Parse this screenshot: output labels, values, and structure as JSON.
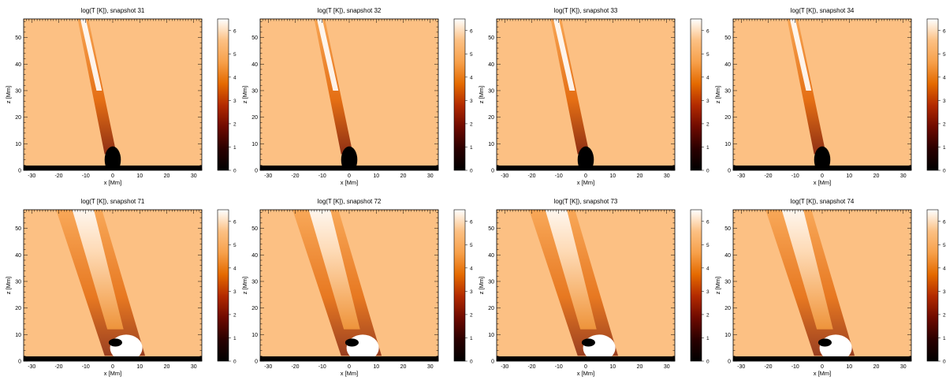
{
  "figure": {
    "colors": {
      "background": "#fcc083",
      "colormap": [
        "#000000",
        "#2a0000",
        "#6e0a00",
        "#b22a00",
        "#e46a00",
        "#f7a04a",
        "#fcc083",
        "#ffffff"
      ],
      "cool_base": "#000000",
      "hot_feature": "#ffffff"
    }
  },
  "chart_data": [
    {
      "type": "heatmap",
      "title": "log(T [K]), snapshot 31",
      "xlabel": "x [Mm]",
      "ylabel": "z [Mm]",
      "xlim": [
        -33,
        33
      ],
      "ylim": [
        0,
        57
      ],
      "x_ticks": [
        -30,
        -20,
        -10,
        0,
        10,
        20,
        30
      ],
      "y_ticks": [
        0,
        10,
        20,
        30,
        40,
        50
      ],
      "colorbar": {
        "range": [
          0,
          6.5
        ],
        "ticks": [
          0,
          1,
          2,
          3,
          4,
          5,
          6
        ]
      }
    },
    {
      "type": "heatmap",
      "title": "log(T [K]), snapshot 32",
      "xlabel": "x [Mm]",
      "ylabel": "z [Mm]",
      "xlim": [
        -33,
        33
      ],
      "ylim": [
        0,
        57
      ],
      "x_ticks": [
        -30,
        -20,
        -10,
        0,
        10,
        20,
        30
      ],
      "y_ticks": [
        0,
        10,
        20,
        30,
        40,
        50
      ],
      "colorbar": {
        "range": [
          0,
          6.5
        ],
        "ticks": [
          0,
          1,
          2,
          3,
          4,
          5,
          6
        ]
      }
    },
    {
      "type": "heatmap",
      "title": "log(T [K]), snapshot 33",
      "xlabel": "x [Mm]",
      "ylabel": "z [Mm]",
      "xlim": [
        -33,
        33
      ],
      "ylim": [
        0,
        57
      ],
      "x_ticks": [
        -30,
        -20,
        -10,
        0,
        10,
        20,
        30
      ],
      "y_ticks": [
        0,
        10,
        20,
        30,
        40,
        50
      ],
      "colorbar": {
        "range": [
          0,
          6.5
        ],
        "ticks": [
          0,
          1,
          2,
          3,
          4,
          5,
          6
        ]
      }
    },
    {
      "type": "heatmap",
      "title": "log(T [K]), snapshot 34",
      "xlabel": "x [Mm]",
      "ylabel": "z [Mm]",
      "xlim": [
        -33,
        33
      ],
      "ylim": [
        0,
        57
      ],
      "x_ticks": [
        -30,
        -20,
        -10,
        0,
        10,
        20,
        30
      ],
      "y_ticks": [
        0,
        10,
        20,
        30,
        40,
        50
      ],
      "colorbar": {
        "range": [
          0,
          6.5
        ],
        "ticks": [
          0,
          1,
          2,
          3,
          4,
          5,
          6
        ]
      }
    },
    {
      "type": "heatmap",
      "title": "log(T [K]), snapshot 71",
      "xlabel": "x [Mm]",
      "ylabel": "z [Mm]",
      "xlim": [
        -33,
        33
      ],
      "ylim": [
        0,
        57
      ],
      "x_ticks": [
        -30,
        -20,
        -10,
        0,
        10,
        20,
        30
      ],
      "y_ticks": [
        0,
        10,
        20,
        30,
        40,
        50
      ],
      "colorbar": {
        "range": [
          0,
          6.5
        ],
        "ticks": [
          0,
          1,
          2,
          3,
          4,
          5,
          6
        ]
      }
    },
    {
      "type": "heatmap",
      "title": "log(T [K]), snapshot 72",
      "xlabel": "x [Mm]",
      "ylabel": "z [Mm]",
      "xlim": [
        -33,
        33
      ],
      "ylim": [
        0,
        57
      ],
      "x_ticks": [
        -30,
        -20,
        -10,
        0,
        10,
        20,
        30
      ],
      "y_ticks": [
        0,
        10,
        20,
        30,
        40,
        50
      ],
      "colorbar": {
        "range": [
          0,
          6.5
        ],
        "ticks": [
          0,
          1,
          2,
          3,
          4,
          5,
          6
        ]
      }
    },
    {
      "type": "heatmap",
      "title": "log(T [K]), snapshot 73",
      "xlabel": "x [Mm]",
      "ylabel": "z [Mm]",
      "xlim": [
        -33,
        33
      ],
      "ylim": [
        0,
        57
      ],
      "x_ticks": [
        -30,
        -20,
        -10,
        0,
        10,
        20,
        30
      ],
      "y_ticks": [
        0,
        10,
        20,
        30,
        40,
        50
      ],
      "colorbar": {
        "range": [
          0,
          6.5
        ],
        "ticks": [
          0,
          1,
          2,
          3,
          4,
          5,
          6
        ]
      }
    },
    {
      "type": "heatmap",
      "title": "log(T [K]), snapshot 74",
      "xlabel": "x [Mm]",
      "ylabel": "z [Mm]",
      "xlim": [
        -33,
        33
      ],
      "ylim": [
        0,
        57
      ],
      "x_ticks": [
        -30,
        -20,
        -10,
        0,
        10,
        20,
        30
      ],
      "y_ticks": [
        0,
        10,
        20,
        30,
        40,
        50
      ],
      "colorbar": {
        "range": [
          0,
          6.5
        ],
        "ticks": [
          0,
          1,
          2,
          3,
          4,
          5,
          6
        ]
      }
    }
  ]
}
